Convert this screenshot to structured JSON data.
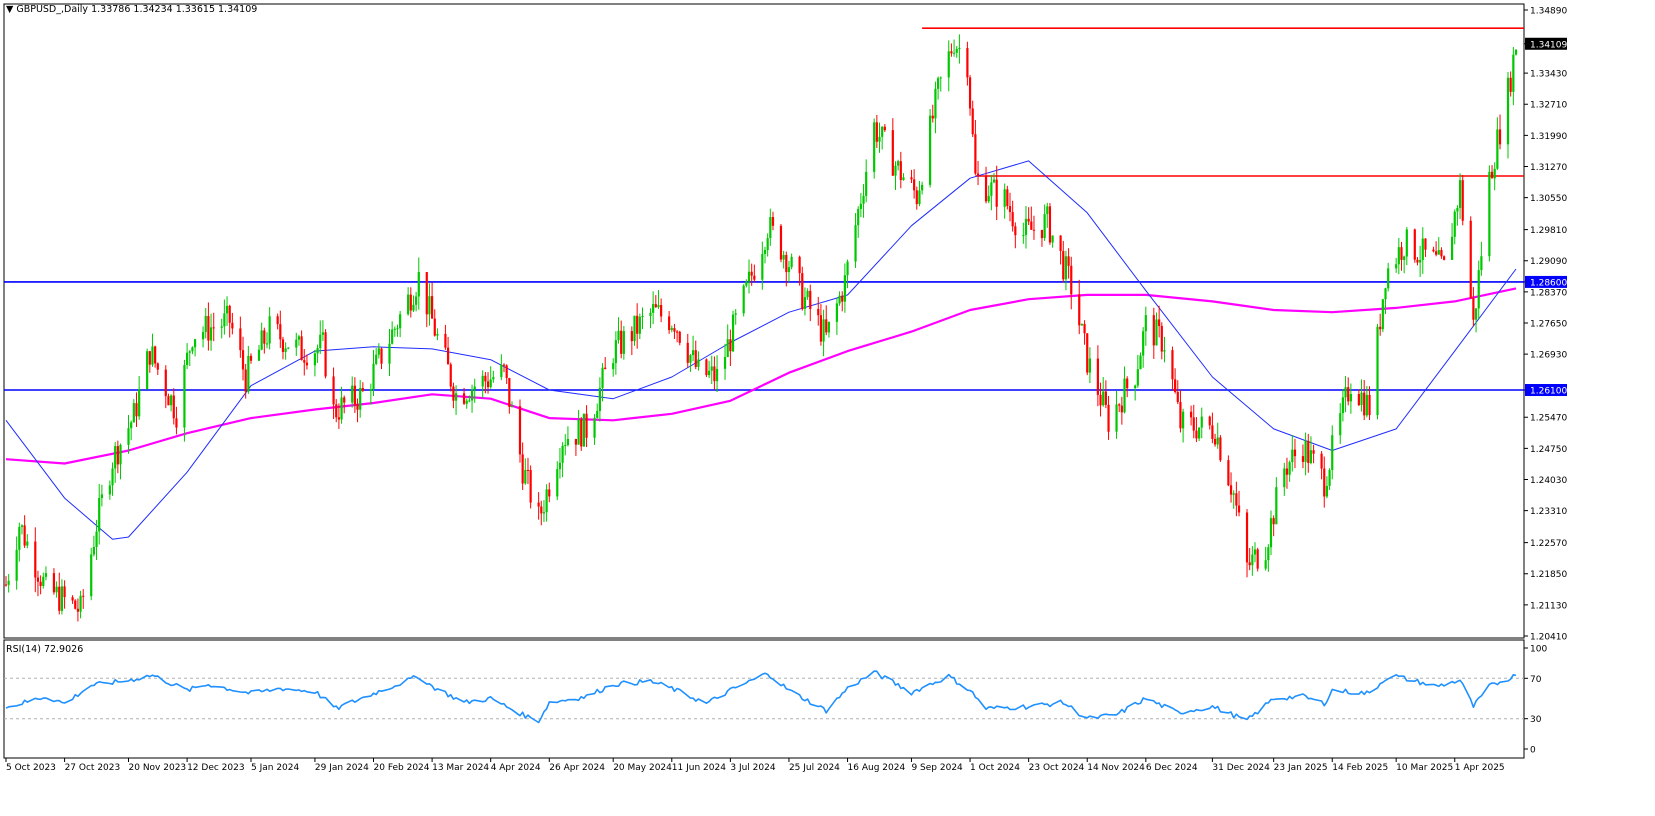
{
  "header": {
    "marker": "▼",
    "symbol": "GBPUSD_,Daily",
    "ohlc": "1.33786 1.34234 1.33615 1.34109"
  },
  "rsi_panel": {
    "label": "RSI(14) 72.9026",
    "levels": [
      "100",
      "70",
      "30",
      "0"
    ]
  },
  "colors": {
    "up": "#00c800",
    "down": "#ff0000",
    "ma_fast": "#1f2cff",
    "ma_slow": "#ff00ff",
    "rsi": "#1e90ff",
    "support_line": "#0000ff",
    "resistance_line": "#ff0000"
  },
  "chart_data": {
    "type": "candlestick",
    "symbol": "GBPUSD",
    "timeframe": "Daily",
    "ylim": [
      1.2041,
      1.3489
    ],
    "y_ticks": [
      "1.34890",
      "1.34109",
      "1.33430",
      "1.32710",
      "1.31990",
      "1.31270",
      "1.30550",
      "1.29810",
      "1.29090",
      "1.28600",
      "1.28370",
      "1.27650",
      "1.26930",
      "1.26100",
      "1.25470",
      "1.24750",
      "1.24030",
      "1.23310",
      "1.22570",
      "1.21850",
      "1.21130",
      "1.20410"
    ],
    "x_ticks": [
      "5 Oct 2023",
      "27 Oct 2023",
      "20 Nov 2023",
      "12 Dec 2023",
      "5 Jan 2024",
      "29 Jan 2024",
      "20 Feb 2024",
      "13 Mar 2024",
      "4 Apr 2024",
      "26 Apr 2024",
      "20 May 2024",
      "11 Jun 2024",
      "3 Jul 2024",
      "25 Jul 2024",
      "16 Aug 2024",
      "9 Sep 2024",
      "1 Oct 2024",
      "23 Oct 2024",
      "14 Nov 2024",
      "6 Dec 2024",
      "31 Dec 2024",
      "23 Jan 2025",
      "14 Feb 2025",
      "10 Mar 2025",
      "1 Apr 2025"
    ],
    "current_price": "1.34109",
    "horizontal_levels": [
      {
        "label": "1.28600",
        "value": 1.286,
        "color": "#0000ff"
      },
      {
        "label": "1.26100",
        "value": 1.261,
        "color": "#0000ff"
      },
      {
        "value": 1.3447,
        "color": "#ff0000",
        "from_x": "13 Sep 2024"
      },
      {
        "value": 1.3105,
        "color": "#ff0000",
        "from_x": "3 Oct 2024"
      }
    ],
    "price_path": [
      {
        "x": "5 Oct 2023",
        "close": 1.216
      },
      {
        "x": "10 Oct 2023",
        "close": 1.23
      },
      {
        "x": "20 Oct 2023",
        "close": 1.215
      },
      {
        "x": "2 Nov 2023",
        "close": 1.21
      },
      {
        "x": "8 Nov 2023",
        "close": 1.23
      },
      {
        "x": "14 Nov 2023",
        "close": 1.245
      },
      {
        "x": "22 Nov 2023",
        "close": 1.255
      },
      {
        "x": "28 Nov 2023",
        "close": 1.27
      },
      {
        "x": "8 Dec 2023",
        "close": 1.256
      },
      {
        "x": "14 Dec 2023",
        "close": 1.274
      },
      {
        "x": "28 Dec 2023",
        "close": 1.277
      },
      {
        "x": "3 Jan 2024",
        "close": 1.264
      },
      {
        "x": "12 Jan 2024",
        "close": 1.275
      },
      {
        "x": "24 Jan 2024",
        "close": 1.27
      },
      {
        "x": "1 Feb 2024",
        "close": 1.271
      },
      {
        "x": "5 Feb 2024",
        "close": 1.256
      },
      {
        "x": "16 Feb 2024",
        "close": 1.26
      },
      {
        "x": "8 Mar 2024",
        "close": 1.287
      },
      {
        "x": "15 Mar 2024",
        "close": 1.273
      },
      {
        "x": "22 Mar 2024",
        "close": 1.26
      },
      {
        "x": "1 Apr 2024",
        "close": 1.263
      },
      {
        "x": "9 Apr 2024",
        "close": 1.265
      },
      {
        "x": "16 Apr 2024",
        "close": 1.243
      },
      {
        "x": "22 Apr 2024",
        "close": 1.231
      },
      {
        "x": "1 May 2024",
        "close": 1.25
      },
      {
        "x": "10 May 2024",
        "close": 1.252
      },
      {
        "x": "20 May 2024",
        "close": 1.27
      },
      {
        "x": "4 Jun 2024",
        "close": 1.279
      },
      {
        "x": "12 Jun 2024",
        "close": 1.277
      },
      {
        "x": "21 Jun 2024",
        "close": 1.265
      },
      {
        "x": "28 Jun 2024",
        "close": 1.264
      },
      {
        "x": "8 Jul 2024",
        "close": 1.282
      },
      {
        "x": "17 Jul 2024",
        "close": 1.299
      },
      {
        "x": "24 Jul 2024",
        "close": 1.292
      },
      {
        "x": "30 Jul 2024",
        "close": 1.283
      },
      {
        "x": "8 Aug 2024",
        "close": 1.273
      },
      {
        "x": "15 Aug 2024",
        "close": 1.286
      },
      {
        "x": "26 Aug 2024",
        "close": 1.322
      },
      {
        "x": "4 Sep 2024",
        "close": 1.312
      },
      {
        "x": "11 Sep 2024",
        "close": 1.306
      },
      {
        "x": "19 Sep 2024",
        "close": 1.33
      },
      {
        "x": "25 Sep 2024",
        "close": 1.342
      },
      {
        "x": "30 Sep 2024",
        "close": 1.337
      },
      {
        "x": "3 Oct 2024",
        "close": 1.31
      },
      {
        "x": "14 Oct 2024",
        "close": 1.305
      },
      {
        "x": "21 Oct 2024",
        "close": 1.297
      },
      {
        "x": "30 Oct 2024",
        "close": 1.3
      },
      {
        "x": "8 Nov 2024",
        "close": 1.285
      },
      {
        "x": "14 Nov 2024",
        "close": 1.268
      },
      {
        "x": "22 Nov 2024",
        "close": 1.254
      },
      {
        "x": "2 Dec 2024",
        "close": 1.265
      },
      {
        "x": "6 Dec 2024",
        "close": 1.276
      },
      {
        "x": "13 Dec 2024",
        "close": 1.272
      },
      {
        "x": "19 Dec 2024",
        "close": 1.253
      },
      {
        "x": "1 Jan 2025",
        "close": 1.252
      },
      {
        "x": "8 Jan 2025",
        "close": 1.237
      },
      {
        "x": "13 Jan 2025",
        "close": 1.22
      },
      {
        "x": "20 Jan 2025",
        "close": 1.225
      },
      {
        "x": "27 Jan 2025",
        "close": 1.243
      },
      {
        "x": "3 Feb 2025",
        "close": 1.248
      },
      {
        "x": "11 Feb 2025",
        "close": 1.24
      },
      {
        "x": "21 Feb 2025",
        "close": 1.263
      },
      {
        "x": "28 Feb 2025",
        "close": 1.257
      },
      {
        "x": "6 Mar 2025",
        "close": 1.288
      },
      {
        "x": "13 Mar 2025",
        "close": 1.295
      },
      {
        "x": "21 Mar 2025",
        "close": 1.292
      },
      {
        "x": "28 Mar 2025",
        "close": 1.289
      },
      {
        "x": "3 Apr 2025",
        "close": 1.308
      },
      {
        "x": "8 Apr 2025",
        "close": 1.276
      },
      {
        "x": "14 Apr 2025",
        "close": 1.31
      },
      {
        "x": "21 Apr 2025",
        "close": 1.33
      },
      {
        "x": "24 Apr 2025",
        "close": 1.3411
      }
    ],
    "ma_fast": [
      {
        "x": "5 Oct 2023",
        "value": 1.254
      },
      {
        "x": "27 Oct 2023",
        "value": 1.236
      },
      {
        "x": "14 Nov 2023",
        "value": 1.2265
      },
      {
        "x": "20 Nov 2023",
        "value": 1.227
      },
      {
        "x": "12 Dec 2023",
        "value": 1.242
      },
      {
        "x": "5 Jan 2024",
        "value": 1.262
      },
      {
        "x": "29 Jan 2024",
        "value": 1.27
      },
      {
        "x": "20 Feb 2024",
        "value": 1.271
      },
      {
        "x": "13 Mar 2024",
        "value": 1.2705
      },
      {
        "x": "4 Apr 2024",
        "value": 1.268
      },
      {
        "x": "26 Apr 2024",
        "value": 1.261
      },
      {
        "x": "20 May 2024",
        "value": 1.259
      },
      {
        "x": "11 Jun 2024",
        "value": 1.264
      },
      {
        "x": "3 Jul 2024",
        "value": 1.272
      },
      {
        "x": "25 Jul 2024",
        "value": 1.279
      },
      {
        "x": "16 Aug 2024",
        "value": 1.283
      },
      {
        "x": "9 Sep 2024",
        "value": 1.299
      },
      {
        "x": "1 Oct 2024",
        "value": 1.31
      },
      {
        "x": "23 Oct 2024",
        "value": 1.314
      },
      {
        "x": "14 Nov 2024",
        "value": 1.302
      },
      {
        "x": "6 Dec 2024",
        "value": 1.284
      },
      {
        "x": "31 Dec 2024",
        "value": 1.264
      },
      {
        "x": "23 Jan 2025",
        "value": 1.252
      },
      {
        "x": "14 Feb 2025",
        "value": 1.247
      },
      {
        "x": "10 Mar 2025",
        "value": 1.252
      },
      {
        "x": "1 Apr 2025",
        "value": 1.27
      },
      {
        "x": "24 Apr 2025",
        "value": 1.289
      }
    ],
    "ma_slow": [
      {
        "x": "5 Oct 2023",
        "value": 1.245
      },
      {
        "x": "27 Oct 2023",
        "value": 1.244
      },
      {
        "x": "20 Nov 2023",
        "value": 1.247
      },
      {
        "x": "12 Dec 2023",
        "value": 1.251
      },
      {
        "x": "5 Jan 2024",
        "value": 1.2545
      },
      {
        "x": "29 Jan 2024",
        "value": 1.2565
      },
      {
        "x": "20 Feb 2024",
        "value": 1.258
      },
      {
        "x": "13 Mar 2024",
        "value": 1.26
      },
      {
        "x": "4 Apr 2024",
        "value": 1.259
      },
      {
        "x": "26 Apr 2024",
        "value": 1.2545
      },
      {
        "x": "20 May 2024",
        "value": 1.254
      },
      {
        "x": "11 Jun 2024",
        "value": 1.2555
      },
      {
        "x": "3 Jul 2024",
        "value": 1.2585
      },
      {
        "x": "25 Jul 2024",
        "value": 1.265
      },
      {
        "x": "16 Aug 2024",
        "value": 1.27
      },
      {
        "x": "9 Sep 2024",
        "value": 1.2745
      },
      {
        "x": "1 Oct 2024",
        "value": 1.2795
      },
      {
        "x": "23 Oct 2024",
        "value": 1.282
      },
      {
        "x": "14 Nov 2024",
        "value": 1.283
      },
      {
        "x": "6 Dec 2024",
        "value": 1.283
      },
      {
        "x": "31 Dec 2024",
        "value": 1.2815
      },
      {
        "x": "23 Jan 2025",
        "value": 1.2795
      },
      {
        "x": "14 Feb 2025",
        "value": 1.279
      },
      {
        "x": "10 Mar 2025",
        "value": 1.28
      },
      {
        "x": "1 Apr 2025",
        "value": 1.2815
      },
      {
        "x": "24 Apr 2025",
        "value": 1.2845
      }
    ],
    "rsi": {
      "period": 14,
      "ylim": [
        0,
        100
      ],
      "levels": [
        70,
        30
      ],
      "values": [
        {
          "x": "5 Oct 2023",
          "value": 41
        },
        {
          "x": "20 Oct 2023",
          "value": 52
        },
        {
          "x": "27 Oct 2023",
          "value": 45
        },
        {
          "x": "6 Nov 2023",
          "value": 63
        },
        {
          "x": "20 Nov 2023",
          "value": 68
        },
        {
          "x": "29 Nov 2023",
          "value": 73
        },
        {
          "x": "12 Dec 2023",
          "value": 58
        },
        {
          "x": "20 Dec 2023",
          "value": 64
        },
        {
          "x": "5 Jan 2024",
          "value": 55
        },
        {
          "x": "16 Jan 2024",
          "value": 60
        },
        {
          "x": "29 Jan 2024",
          "value": 57
        },
        {
          "x": "6 Feb 2024",
          "value": 40
        },
        {
          "x": "20 Feb 2024",
          "value": 55
        },
        {
          "x": "8 Mar 2024",
          "value": 72
        },
        {
          "x": "13 Mar 2024",
          "value": 62
        },
        {
          "x": "25 Mar 2024",
          "value": 46
        },
        {
          "x": "4 Apr 2024",
          "value": 50
        },
        {
          "x": "16 Apr 2024",
          "value": 34
        },
        {
          "x": "22 Apr 2024",
          "value": 28
        },
        {
          "x": "26 Apr 2024",
          "value": 46
        },
        {
          "x": "10 May 2024",
          "value": 52
        },
        {
          "x": "20 May 2024",
          "value": 64
        },
        {
          "x": "3 Jun 2024",
          "value": 67
        },
        {
          "x": "11 Jun 2024",
          "value": 60
        },
        {
          "x": "24 Jun 2024",
          "value": 45
        },
        {
          "x": "3 Jul 2024",
          "value": 58
        },
        {
          "x": "17 Jul 2024",
          "value": 75
        },
        {
          "x": "25 Jul 2024",
          "value": 58
        },
        {
          "x": "8 Aug 2024",
          "value": 38
        },
        {
          "x": "16 Aug 2024",
          "value": 60
        },
        {
          "x": "26 Aug 2024",
          "value": 76
        },
        {
          "x": "9 Sep 2024",
          "value": 56
        },
        {
          "x": "23 Sep 2024",
          "value": 72
        },
        {
          "x": "1 Oct 2024",
          "value": 58
        },
        {
          "x": "7 Oct 2024",
          "value": 40
        },
        {
          "x": "23 Oct 2024",
          "value": 42
        },
        {
          "x": "5 Nov 2024",
          "value": 46
        },
        {
          "x": "14 Nov 2024",
          "value": 30
        },
        {
          "x": "25 Nov 2024",
          "value": 34
        },
        {
          "x": "6 Dec 2024",
          "value": 50
        },
        {
          "x": "18 Dec 2024",
          "value": 36
        },
        {
          "x": "31 Dec 2024",
          "value": 42
        },
        {
          "x": "13 Jan 2025",
          "value": 28
        },
        {
          "x": "23 Jan 2025",
          "value": 50
        },
        {
          "x": "3 Feb 2025",
          "value": 52
        },
        {
          "x": "11 Feb 2025",
          "value": 45
        },
        {
          "x": "14 Feb 2025",
          "value": 58
        },
        {
          "x": "28 Feb 2025",
          "value": 55
        },
        {
          "x": "6 Mar 2025",
          "value": 70
        },
        {
          "x": "10 Mar 2025",
          "value": 72
        },
        {
          "x": "25 Mar 2025",
          "value": 62
        },
        {
          "x": "3 Apr 2025",
          "value": 68
        },
        {
          "x": "8 Apr 2025",
          "value": 42
        },
        {
          "x": "14 Apr 2025",
          "value": 62
        },
        {
          "x": "24 Apr 2025",
          "value": 72.9
        }
      ]
    }
  }
}
